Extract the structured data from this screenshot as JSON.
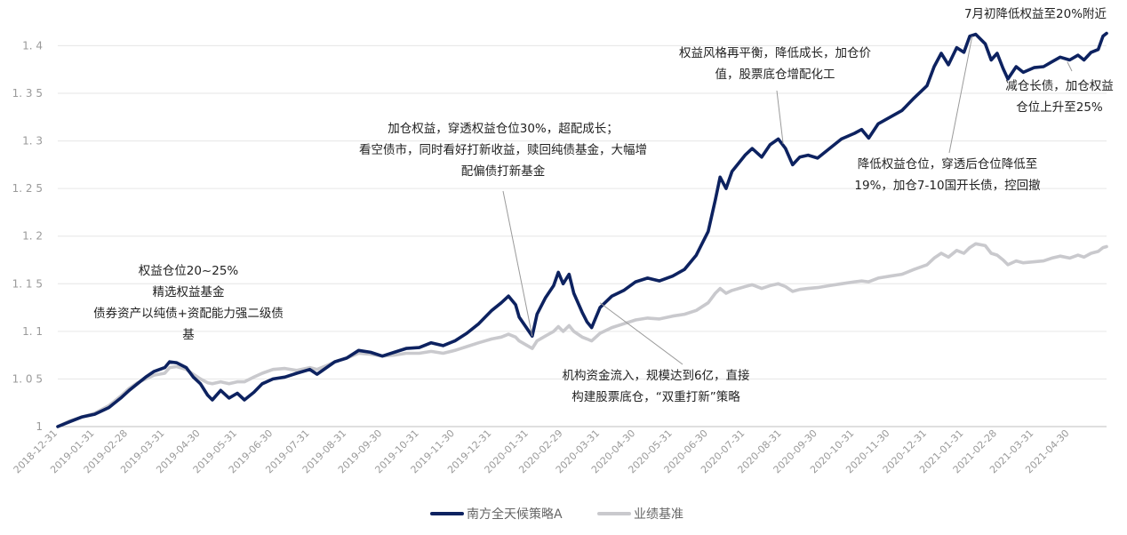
{
  "chart_data": {
    "type": "line",
    "title": "",
    "xlabel": "",
    "ylabel": "",
    "ylim": [
      1.0,
      1.42
    ],
    "xlim": [
      "2018-12-31",
      "2021-05-31"
    ],
    "y_ticks": [
      "1",
      "1.05",
      "1.1",
      "1.15",
      "1.2",
      "1.25",
      "1.3",
      "1.35",
      "1.4"
    ],
    "x_ticks": [
      "2018-12-31",
      "2019-01-31",
      "2019-02-28",
      "2019-03-31",
      "2019-04-30",
      "2019-05-31",
      "2019-06-30",
      "2019-07-31",
      "2019-08-31",
      "2019-09-30",
      "2019-10-31",
      "2019-11-30",
      "2019-12-31",
      "2020-01-31",
      "2020-02-29",
      "2020-03-31",
      "2020-04-30",
      "2020-05-31",
      "2020-06-30",
      "2020-07-31",
      "2020-08-31",
      "2020-09-30",
      "2020-10-31",
      "2020-11-30",
      "2020-12-31",
      "2021-01-31",
      "2021-02-28",
      "2021-03-31",
      "2021-04-30"
    ],
    "grid": "horizontal",
    "legend_position": "bottom-center",
    "series": [
      {
        "name": "南方全天候策略A",
        "color": "#0d2260",
        "points": [
          [
            "2018-12-31",
            1.0
          ],
          [
            "2019-01-10",
            1.005
          ],
          [
            "2019-01-20",
            1.01
          ],
          [
            "2019-01-31",
            1.013
          ],
          [
            "2019-02-12",
            1.02
          ],
          [
            "2019-02-22",
            1.03
          ],
          [
            "2019-03-01",
            1.038
          ],
          [
            "2019-03-08",
            1.045
          ],
          [
            "2019-03-15",
            1.052
          ],
          [
            "2019-03-22",
            1.058
          ],
          [
            "2019-03-31",
            1.062
          ],
          [
            "2019-04-04",
            1.068
          ],
          [
            "2019-04-10",
            1.067
          ],
          [
            "2019-04-18",
            1.062
          ],
          [
            "2019-04-24",
            1.052
          ],
          [
            "2019-04-30",
            1.045
          ],
          [
            "2019-05-06",
            1.033
          ],
          [
            "2019-05-10",
            1.028
          ],
          [
            "2019-05-17",
            1.038
          ],
          [
            "2019-05-24",
            1.03
          ],
          [
            "2019-05-31",
            1.035
          ],
          [
            "2019-06-06",
            1.028
          ],
          [
            "2019-06-14",
            1.036
          ],
          [
            "2019-06-21",
            1.045
          ],
          [
            "2019-06-30",
            1.05
          ],
          [
            "2019-07-10",
            1.052
          ],
          [
            "2019-07-20",
            1.056
          ],
          [
            "2019-07-31",
            1.06
          ],
          [
            "2019-08-06",
            1.055
          ],
          [
            "2019-08-14",
            1.062
          ],
          [
            "2019-08-21",
            1.068
          ],
          [
            "2019-08-31",
            1.072
          ],
          [
            "2019-09-10",
            1.08
          ],
          [
            "2019-09-20",
            1.078
          ],
          [
            "2019-09-30",
            1.074
          ],
          [
            "2019-10-10",
            1.078
          ],
          [
            "2019-10-20",
            1.082
          ],
          [
            "2019-10-31",
            1.083
          ],
          [
            "2019-11-10",
            1.088
          ],
          [
            "2019-11-20",
            1.085
          ],
          [
            "2019-11-30",
            1.09
          ],
          [
            "2019-12-10",
            1.098
          ],
          [
            "2019-12-20",
            1.108
          ],
          [
            "2019-12-31",
            1.122
          ],
          [
            "2020-01-08",
            1.13
          ],
          [
            "2020-01-14",
            1.137
          ],
          [
            "2020-01-20",
            1.128
          ],
          [
            "2020-01-23",
            1.115
          ],
          [
            "2020-02-03",
            1.095
          ],
          [
            "2020-02-07",
            1.118
          ],
          [
            "2020-02-14",
            1.135
          ],
          [
            "2020-02-21",
            1.148
          ],
          [
            "2020-02-25",
            1.162
          ],
          [
            "2020-02-29",
            1.15
          ],
          [
            "2020-03-05",
            1.16
          ],
          [
            "2020-03-09",
            1.14
          ],
          [
            "2020-03-16",
            1.12
          ],
          [
            "2020-03-20",
            1.11
          ],
          [
            "2020-03-24",
            1.104
          ],
          [
            "2020-03-31",
            1.125
          ],
          [
            "2020-04-10",
            1.137
          ],
          [
            "2020-04-20",
            1.143
          ],
          [
            "2020-04-30",
            1.152
          ],
          [
            "2020-05-10",
            1.156
          ],
          [
            "2020-05-20",
            1.153
          ],
          [
            "2020-05-31",
            1.158
          ],
          [
            "2020-06-10",
            1.165
          ],
          [
            "2020-06-20",
            1.18
          ],
          [
            "2020-06-30",
            1.205
          ],
          [
            "2020-07-06",
            1.238
          ],
          [
            "2020-07-10",
            1.262
          ],
          [
            "2020-07-15",
            1.25
          ],
          [
            "2020-07-20",
            1.268
          ],
          [
            "2020-07-31",
            1.285
          ],
          [
            "2020-08-06",
            1.292
          ],
          [
            "2020-08-14",
            1.283
          ],
          [
            "2020-08-21",
            1.296
          ],
          [
            "2020-08-28",
            1.302
          ],
          [
            "2020-09-03",
            1.292
          ],
          [
            "2020-09-09",
            1.275
          ],
          [
            "2020-09-15",
            1.283
          ],
          [
            "2020-09-22",
            1.285
          ],
          [
            "2020-09-30",
            1.282
          ],
          [
            "2020-10-10",
            1.292
          ],
          [
            "2020-10-20",
            1.302
          ],
          [
            "2020-10-31",
            1.308
          ],
          [
            "2020-11-06",
            1.312
          ],
          [
            "2020-11-12",
            1.303
          ],
          [
            "2020-11-20",
            1.318
          ],
          [
            "2020-11-30",
            1.325
          ],
          [
            "2020-12-10",
            1.332
          ],
          [
            "2020-12-20",
            1.345
          ],
          [
            "2020-12-31",
            1.358
          ],
          [
            "2021-01-06",
            1.378
          ],
          [
            "2021-01-12",
            1.392
          ],
          [
            "2021-01-18",
            1.38
          ],
          [
            "2021-01-25",
            1.398
          ],
          [
            "2021-01-31",
            1.393
          ],
          [
            "2021-02-05",
            1.41
          ],
          [
            "2021-02-10",
            1.412
          ],
          [
            "2021-02-18",
            1.402
          ],
          [
            "2021-02-23",
            1.385
          ],
          [
            "2021-02-28",
            1.392
          ],
          [
            "2021-03-05",
            1.376
          ],
          [
            "2021-03-09",
            1.365
          ],
          [
            "2021-03-16",
            1.378
          ],
          [
            "2021-03-22",
            1.372
          ],
          [
            "2021-03-31",
            1.377
          ],
          [
            "2021-04-08",
            1.378
          ],
          [
            "2021-04-15",
            1.383
          ],
          [
            "2021-04-22",
            1.388
          ],
          [
            "2021-04-30",
            1.385
          ],
          [
            "2021-05-07",
            1.39
          ],
          [
            "2021-05-12",
            1.385
          ],
          [
            "2021-05-18",
            1.393
          ],
          [
            "2021-05-24",
            1.396
          ],
          [
            "2021-05-28",
            1.41
          ],
          [
            "2021-05-31",
            1.413
          ]
        ]
      },
      {
        "name": "业绩基准",
        "color": "#c9c9cd",
        "points": [
          [
            "2018-12-31",
            1.0
          ],
          [
            "2019-01-10",
            1.006
          ],
          [
            "2019-01-20",
            1.01
          ],
          [
            "2019-01-31",
            1.014
          ],
          [
            "2019-02-12",
            1.022
          ],
          [
            "2019-02-22",
            1.032
          ],
          [
            "2019-03-01",
            1.04
          ],
          [
            "2019-03-08",
            1.046
          ],
          [
            "2019-03-15",
            1.05
          ],
          [
            "2019-03-22",
            1.054
          ],
          [
            "2019-03-31",
            1.056
          ],
          [
            "2019-04-04",
            1.062
          ],
          [
            "2019-04-10",
            1.063
          ],
          [
            "2019-04-18",
            1.06
          ],
          [
            "2019-04-24",
            1.055
          ],
          [
            "2019-04-30",
            1.05
          ],
          [
            "2019-05-06",
            1.046
          ],
          [
            "2019-05-10",
            1.045
          ],
          [
            "2019-05-17",
            1.047
          ],
          [
            "2019-05-24",
            1.045
          ],
          [
            "2019-05-31",
            1.047
          ],
          [
            "2019-06-06",
            1.047
          ],
          [
            "2019-06-14",
            1.052
          ],
          [
            "2019-06-21",
            1.056
          ],
          [
            "2019-06-30",
            1.06
          ],
          [
            "2019-07-10",
            1.061
          ],
          [
            "2019-07-20",
            1.059
          ],
          [
            "2019-07-31",
            1.062
          ],
          [
            "2019-08-06",
            1.06
          ],
          [
            "2019-08-14",
            1.064
          ],
          [
            "2019-08-21",
            1.068
          ],
          [
            "2019-08-31",
            1.072
          ],
          [
            "2019-09-10",
            1.077
          ],
          [
            "2019-09-20",
            1.076
          ],
          [
            "2019-09-30",
            1.074
          ],
          [
            "2019-10-10",
            1.075
          ],
          [
            "2019-10-20",
            1.077
          ],
          [
            "2019-10-31",
            1.077
          ],
          [
            "2019-11-10",
            1.079
          ],
          [
            "2019-11-20",
            1.077
          ],
          [
            "2019-11-30",
            1.08
          ],
          [
            "2019-12-10",
            1.084
          ],
          [
            "2019-12-20",
            1.088
          ],
          [
            "2019-12-31",
            1.092
          ],
          [
            "2020-01-08",
            1.094
          ],
          [
            "2020-01-14",
            1.097
          ],
          [
            "2020-01-20",
            1.094
          ],
          [
            "2020-01-23",
            1.09
          ],
          [
            "2020-02-03",
            1.082
          ],
          [
            "2020-02-07",
            1.09
          ],
          [
            "2020-02-14",
            1.095
          ],
          [
            "2020-02-21",
            1.1
          ],
          [
            "2020-02-25",
            1.105
          ],
          [
            "2020-02-29",
            1.1
          ],
          [
            "2020-03-05",
            1.106
          ],
          [
            "2020-03-09",
            1.1
          ],
          [
            "2020-03-16",
            1.094
          ],
          [
            "2020-03-20",
            1.092
          ],
          [
            "2020-03-24",
            1.09
          ],
          [
            "2020-03-31",
            1.098
          ],
          [
            "2020-04-10",
            1.104
          ],
          [
            "2020-04-20",
            1.108
          ],
          [
            "2020-04-30",
            1.112
          ],
          [
            "2020-05-10",
            1.114
          ],
          [
            "2020-05-20",
            1.113
          ],
          [
            "2020-05-31",
            1.116
          ],
          [
            "2020-06-10",
            1.118
          ],
          [
            "2020-06-20",
            1.122
          ],
          [
            "2020-06-30",
            1.13
          ],
          [
            "2020-07-06",
            1.14
          ],
          [
            "2020-07-10",
            1.145
          ],
          [
            "2020-07-15",
            1.14
          ],
          [
            "2020-07-20",
            1.143
          ],
          [
            "2020-07-31",
            1.147
          ],
          [
            "2020-08-06",
            1.149
          ],
          [
            "2020-08-14",
            1.145
          ],
          [
            "2020-08-21",
            1.148
          ],
          [
            "2020-08-28",
            1.15
          ],
          [
            "2020-09-03",
            1.147
          ],
          [
            "2020-09-09",
            1.142
          ],
          [
            "2020-09-15",
            1.144
          ],
          [
            "2020-09-22",
            1.145
          ],
          [
            "2020-09-30",
            1.146
          ],
          [
            "2020-10-10",
            1.148
          ],
          [
            "2020-10-20",
            1.15
          ],
          [
            "2020-10-31",
            1.152
          ],
          [
            "2020-11-06",
            1.153
          ],
          [
            "2020-11-12",
            1.152
          ],
          [
            "2020-11-20",
            1.156
          ],
          [
            "2020-11-30",
            1.158
          ],
          [
            "2020-12-10",
            1.16
          ],
          [
            "2020-12-20",
            1.165
          ],
          [
            "2020-12-31",
            1.17
          ],
          [
            "2021-01-06",
            1.177
          ],
          [
            "2021-01-12",
            1.182
          ],
          [
            "2021-01-18",
            1.178
          ],
          [
            "2021-01-25",
            1.185
          ],
          [
            "2021-01-31",
            1.182
          ],
          [
            "2021-02-05",
            1.188
          ],
          [
            "2021-02-10",
            1.192
          ],
          [
            "2021-02-18",
            1.19
          ],
          [
            "2021-02-23",
            1.182
          ],
          [
            "2021-02-28",
            1.18
          ],
          [
            "2021-03-05",
            1.175
          ],
          [
            "2021-03-09",
            1.17
          ],
          [
            "2021-03-16",
            1.174
          ],
          [
            "2021-03-22",
            1.172
          ],
          [
            "2021-03-31",
            1.173
          ],
          [
            "2021-04-08",
            1.174
          ],
          [
            "2021-04-15",
            1.177
          ],
          [
            "2021-04-22",
            1.179
          ],
          [
            "2021-04-30",
            1.177
          ],
          [
            "2021-05-07",
            1.18
          ],
          [
            "2021-05-12",
            1.178
          ],
          [
            "2021-05-18",
            1.182
          ],
          [
            "2021-05-24",
            1.184
          ],
          [
            "2021-05-28",
            1.188
          ],
          [
            "2021-05-31",
            1.189
          ]
        ]
      }
    ],
    "annotations": [
      {
        "lines": [
          "权益仓位20~25%",
          "精选权益基金",
          "债券资产以纯债+资配能力强二级债",
          "基"
        ],
        "date": "2019-04-05",
        "value": 1.065
      },
      {
        "lines": [
          "加仓权益，穿透权益仓位30%，超配成长；",
          "看空债市，同时看好打新收益，赎回纯债基金，大幅增",
          "配偏债打新基金"
        ],
        "date": "2020-02-03",
        "value": 1.095
      },
      {
        "lines": [
          "机构资金流入，规模达到6亿，直接",
          "构建股票底仓，“双重打新”策略"
        ],
        "date": "2020-03-31",
        "value": 1.13
      },
      {
        "lines": [
          "权益风格再平衡，降低成长，加仓价",
          "值，股票底仓增配化工"
        ],
        "date": "2020-09-01",
        "value": 1.297
      },
      {
        "lines": [
          "降低权益仓位，穿透后仓位降低至",
          "19%，加仓7-10国开长债，控回撤"
        ],
        "date": "2021-02-07",
        "value": 1.41
      },
      {
        "lines": [
          "7月初降低权益至20%附近"
        ],
        "date": "2021-05-29",
        "value": 1.411
      },
      {
        "lines": [
          "减仓长债，加仓权益",
          "仓位上升至25%"
        ],
        "date": "2021-04-28",
        "value": 1.383
      }
    ]
  }
}
